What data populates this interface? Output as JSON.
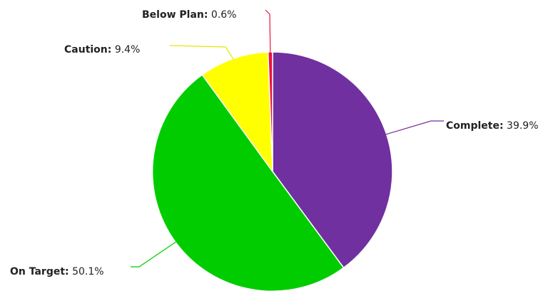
{
  "chart_data": {
    "type": "pie",
    "slices": [
      {
        "name": "Complete",
        "value": 39.9,
        "value_label": "39.9%",
        "color": "#7030a0"
      },
      {
        "name": "On Target",
        "value": 50.1,
        "value_label": "50.1%",
        "color": "#00cc00"
      },
      {
        "name": "Caution",
        "value": 9.4,
        "value_label": "9.4%",
        "color": "#ffff00"
      },
      {
        "name": "Below Plan",
        "value": 0.6,
        "value_label": "0.6%",
        "color": "#e8163c"
      }
    ],
    "direction": "clockwise",
    "start": "top",
    "legend": "none",
    "data_labels": "outside-with-leader-lines"
  }
}
